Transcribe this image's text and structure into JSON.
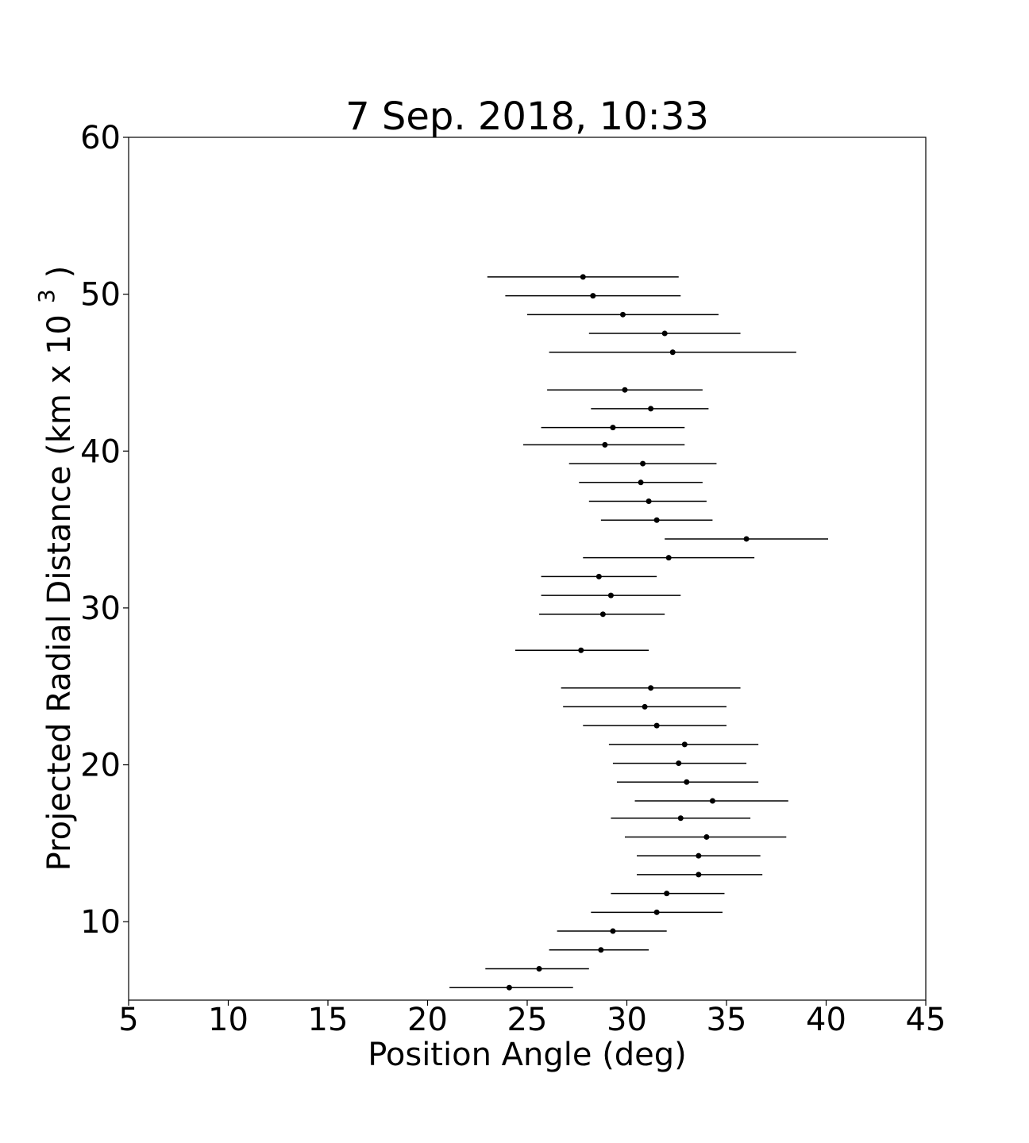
{
  "chart_data": {
    "type": "scatter",
    "title": "7 Sep. 2018, 10:33",
    "xlabel": "Position Angle (deg)",
    "ylabel_main": "Projected Radial Distance (km x 10",
    "ylabel_exp": "3",
    "ylabel_close": ")",
    "xlim": [
      5,
      45
    ],
    "ylim": [
      5,
      60
    ],
    "xticks": [
      5,
      10,
      15,
      20,
      25,
      30,
      35,
      40,
      45
    ],
    "yticks": [
      10,
      20,
      30,
      40,
      50,
      60
    ],
    "grid": false,
    "error_bars": "horizontal",
    "color": "#000000",
    "points": [
      {
        "x": 27.8,
        "y": 51.1,
        "xmin": 23.0,
        "xmax": 32.6
      },
      {
        "x": 28.3,
        "y": 49.9,
        "xmin": 23.9,
        "xmax": 32.7
      },
      {
        "x": 29.8,
        "y": 48.7,
        "xmin": 25.0,
        "xmax": 34.6
      },
      {
        "x": 31.9,
        "y": 47.5,
        "xmin": 28.1,
        "xmax": 35.7
      },
      {
        "x": 32.3,
        "y": 46.3,
        "xmin": 26.1,
        "xmax": 38.5
      },
      {
        "x": 29.9,
        "y": 43.9,
        "xmin": 26.0,
        "xmax": 33.8
      },
      {
        "x": 31.2,
        "y": 42.7,
        "xmin": 28.2,
        "xmax": 34.1
      },
      {
        "x": 29.3,
        "y": 41.5,
        "xmin": 25.7,
        "xmax": 32.9
      },
      {
        "x": 28.9,
        "y": 40.4,
        "xmin": 24.8,
        "xmax": 32.9
      },
      {
        "x": 30.8,
        "y": 39.2,
        "xmin": 27.1,
        "xmax": 34.5
      },
      {
        "x": 30.7,
        "y": 38.0,
        "xmin": 27.6,
        "xmax": 33.8
      },
      {
        "x": 31.1,
        "y": 36.8,
        "xmin": 28.1,
        "xmax": 34.0
      },
      {
        "x": 31.5,
        "y": 35.6,
        "xmin": 28.7,
        "xmax": 34.3
      },
      {
        "x": 36.0,
        "y": 34.4,
        "xmin": 31.9,
        "xmax": 40.1
      },
      {
        "x": 32.1,
        "y": 33.2,
        "xmin": 27.8,
        "xmax": 36.4
      },
      {
        "x": 28.6,
        "y": 32.0,
        "xmin": 25.7,
        "xmax": 31.5
      },
      {
        "x": 29.2,
        "y": 30.8,
        "xmin": 25.7,
        "xmax": 32.7
      },
      {
        "x": 28.8,
        "y": 29.6,
        "xmin": 25.6,
        "xmax": 31.9
      },
      {
        "x": 27.7,
        "y": 27.3,
        "xmin": 24.4,
        "xmax": 31.1
      },
      {
        "x": 31.2,
        "y": 24.9,
        "xmin": 26.7,
        "xmax": 35.7
      },
      {
        "x": 30.9,
        "y": 23.7,
        "xmin": 26.8,
        "xmax": 35.0
      },
      {
        "x": 31.5,
        "y": 22.5,
        "xmin": 27.8,
        "xmax": 35.0
      },
      {
        "x": 32.9,
        "y": 21.3,
        "xmin": 29.1,
        "xmax": 36.6
      },
      {
        "x": 32.6,
        "y": 20.1,
        "xmin": 29.3,
        "xmax": 36.0
      },
      {
        "x": 33.0,
        "y": 18.9,
        "xmin": 29.5,
        "xmax": 36.6
      },
      {
        "x": 34.3,
        "y": 17.7,
        "xmin": 30.4,
        "xmax": 38.1
      },
      {
        "x": 32.7,
        "y": 16.6,
        "xmin": 29.2,
        "xmax": 36.2
      },
      {
        "x": 34.0,
        "y": 15.4,
        "xmin": 29.9,
        "xmax": 38.0
      },
      {
        "x": 33.6,
        "y": 14.2,
        "xmin": 30.5,
        "xmax": 36.7
      },
      {
        "x": 33.6,
        "y": 13.0,
        "xmin": 30.5,
        "xmax": 36.8
      },
      {
        "x": 32.0,
        "y": 11.8,
        "xmin": 29.2,
        "xmax": 34.9
      },
      {
        "x": 31.5,
        "y": 10.6,
        "xmin": 28.2,
        "xmax": 34.8
      },
      {
        "x": 29.3,
        "y": 9.4,
        "xmin": 26.5,
        "xmax": 32.0
      },
      {
        "x": 28.7,
        "y": 8.2,
        "xmin": 26.1,
        "xmax": 31.1
      },
      {
        "x": 25.6,
        "y": 7.0,
        "xmin": 22.9,
        "xmax": 28.1
      },
      {
        "x": 24.1,
        "y": 5.8,
        "xmin": 21.1,
        "xmax": 27.3
      }
    ]
  }
}
